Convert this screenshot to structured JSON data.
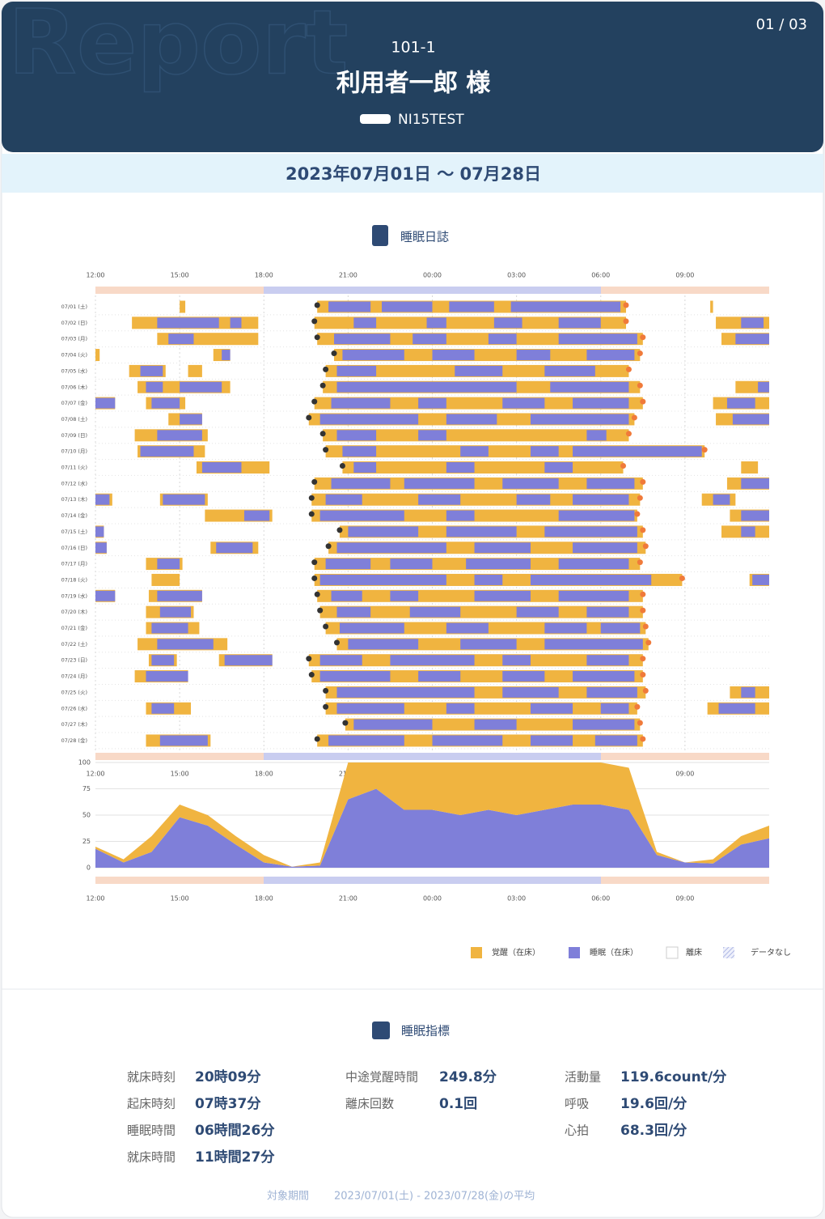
{
  "header": {
    "page": "01 / 03",
    "watermark": "Report",
    "room": "101-1",
    "name": "利用者一郎 様",
    "device": "NI15TEST"
  },
  "date_range": "2023年07月01日 〜 07月28日",
  "sleep_diary": {
    "title": "睡眠日誌",
    "xlim": [
      0,
      24
    ],
    "xticks": [
      {
        "value": 0,
        "label": "12:00"
      },
      {
        "value": 3,
        "label": "15:00"
      },
      {
        "value": 6,
        "label": "18:00"
      },
      {
        "value": 9,
        "label": "21:00"
      },
      {
        "value": 12,
        "label": "00:00"
      },
      {
        "value": 15,
        "label": "03:00"
      },
      {
        "value": 18,
        "label": "06:00"
      },
      {
        "value": 21,
        "label": "09:00"
      }
    ],
    "rows": [
      {
        "date": "07/01 (土)",
        "bed": [
          [
            3.0,
            3.2
          ],
          [
            7.9,
            18.9
          ],
          [
            21.9,
            22.0
          ]
        ],
        "sleep": [
          [
            8.3,
            9.8
          ],
          [
            10.2,
            12.0
          ],
          [
            12.6,
            14.2
          ],
          [
            14.8,
            18.7
          ]
        ]
      },
      {
        "date": "07/02 (日)",
        "bed": [
          [
            1.3,
            5.8
          ],
          [
            7.8,
            18.9
          ],
          [
            22.1,
            24
          ]
        ],
        "sleep": [
          [
            2.2,
            4.4
          ],
          [
            4.8,
            5.2
          ],
          [
            9.2,
            10.0
          ],
          [
            11.8,
            12.5
          ],
          [
            14.2,
            15.2
          ],
          [
            16.5,
            18.0
          ],
          [
            23.0,
            23.8
          ]
        ]
      },
      {
        "date": "07/03 (月)",
        "bed": [
          [
            2.2,
            5.8
          ],
          [
            7.9,
            19.5
          ],
          [
            22.3,
            24
          ]
        ],
        "sleep": [
          [
            2.6,
            3.5
          ],
          [
            8.5,
            10.5
          ],
          [
            11.3,
            12.5
          ],
          [
            14.0,
            15.0
          ],
          [
            16.5,
            19.3
          ],
          [
            22.8,
            24
          ]
        ]
      },
      {
        "date": "07/04 (火)",
        "bed": [
          [
            0,
            0.15
          ],
          [
            4.2,
            4.8
          ],
          [
            8.5,
            19.4
          ]
        ],
        "sleep": [
          [
            4.5,
            4.8
          ],
          [
            8.8,
            11.0
          ],
          [
            12.0,
            13.5
          ],
          [
            15.0,
            16.2
          ],
          [
            17.5,
            19.2
          ]
        ]
      },
      {
        "date": "07/05 (水)",
        "bed": [
          [
            1.2,
            2.5
          ],
          [
            3.3,
            3.8
          ],
          [
            8.2,
            19.0
          ]
        ],
        "sleep": [
          [
            1.6,
            2.4
          ],
          [
            8.6,
            10.0
          ],
          [
            12.8,
            14.5
          ],
          [
            16.0,
            17.8
          ]
        ]
      },
      {
        "date": "07/06 (木)",
        "bed": [
          [
            1.5,
            4.8
          ],
          [
            8.1,
            19.4
          ],
          [
            22.8,
            24
          ]
        ],
        "sleep": [
          [
            1.8,
            2.4
          ],
          [
            3.0,
            4.5
          ],
          [
            8.6,
            15.0
          ],
          [
            16.2,
            19.0
          ],
          [
            23.6,
            24
          ]
        ]
      },
      {
        "date": "07/07 (金)",
        "bed": [
          [
            0,
            0.7
          ],
          [
            1.8,
            3.2
          ],
          [
            7.8,
            19.5
          ],
          [
            22.0,
            24
          ]
        ],
        "sleep": [
          [
            0,
            0.7
          ],
          [
            2.0,
            3.0
          ],
          [
            8.4,
            10.5
          ],
          [
            11.5,
            12.5
          ],
          [
            14.5,
            16.0
          ],
          [
            17.0,
            19.0
          ],
          [
            22.5,
            23.5
          ]
        ]
      },
      {
        "date": "07/08 (土)",
        "bed": [
          [
            2.6,
            3.8
          ],
          [
            7.6,
            19.2
          ],
          [
            22.1,
            24
          ]
        ],
        "sleep": [
          [
            3.0,
            3.8
          ],
          [
            8.0,
            11.5
          ],
          [
            12.5,
            14.3
          ],
          [
            15.5,
            19.0
          ],
          [
            22.7,
            24
          ]
        ]
      },
      {
        "date": "07/09 (日)",
        "bed": [
          [
            1.4,
            4.0
          ],
          [
            8.1,
            19.0
          ]
        ],
        "sleep": [
          [
            2.2,
            3.8
          ],
          [
            8.6,
            10.0
          ],
          [
            11.5,
            12.5
          ],
          [
            17.5,
            18.2
          ]
        ]
      },
      {
        "date": "07/10 (月)",
        "bed": [
          [
            1.5,
            3.9
          ],
          [
            8.2,
            21.7
          ]
        ],
        "sleep": [
          [
            1.6,
            3.5
          ],
          [
            8.8,
            10.0
          ],
          [
            13.0,
            14.0
          ],
          [
            15.5,
            16.5
          ],
          [
            17.0,
            21.6
          ]
        ]
      },
      {
        "date": "07/11 (火)",
        "bed": [
          [
            3.6,
            6.2
          ],
          [
            8.8,
            18.8
          ],
          [
            23.0,
            23.6
          ]
        ],
        "sleep": [
          [
            3.8,
            5.2
          ],
          [
            9.2,
            10.0
          ],
          [
            12.5,
            13.5
          ],
          [
            16.0,
            17.0
          ]
        ]
      },
      {
        "date": "07/12 (水)",
        "bed": [
          [
            7.8,
            19.5
          ],
          [
            22.5,
            24
          ]
        ],
        "sleep": [
          [
            8.4,
            10.5
          ],
          [
            11.0,
            13.5
          ],
          [
            14.5,
            16.5
          ],
          [
            17.5,
            19.2
          ],
          [
            23.0,
            24
          ]
        ]
      },
      {
        "date": "07/13 (木)",
        "bed": [
          [
            0,
            0.6
          ],
          [
            2.3,
            4.0
          ],
          [
            7.7,
            19.4
          ],
          [
            21.6,
            22.8
          ]
        ],
        "sleep": [
          [
            0,
            0.5
          ],
          [
            2.4,
            3.9
          ],
          [
            8.2,
            9.5
          ],
          [
            11.5,
            13.0
          ],
          [
            15.0,
            16.2
          ],
          [
            17.0,
            19.0
          ],
          [
            22.0,
            22.6
          ]
        ]
      },
      {
        "date": "07/14 (金)",
        "bed": [
          [
            3.9,
            6.3
          ],
          [
            7.7,
            19.3
          ],
          [
            22.6,
            24
          ]
        ],
        "sleep": [
          [
            5.3,
            6.2
          ],
          [
            8.0,
            11.0
          ],
          [
            12.5,
            13.5
          ],
          [
            16.5,
            19.2
          ],
          [
            23.0,
            24
          ]
        ]
      },
      {
        "date": "07/15 (土)",
        "bed": [
          [
            0,
            0.3
          ],
          [
            8.7,
            19.5
          ],
          [
            22.3,
            24
          ]
        ],
        "sleep": [
          [
            0,
            0.3
          ],
          [
            9.0,
            11.5
          ],
          [
            12.5,
            15.0
          ],
          [
            16.0,
            19.3
          ],
          [
            23.0,
            23.5
          ]
        ]
      },
      {
        "date": "07/16 (日)",
        "bed": [
          [
            0,
            0.4
          ],
          [
            4.1,
            5.8
          ],
          [
            8.3,
            19.6
          ]
        ],
        "sleep": [
          [
            0,
            0.4
          ],
          [
            4.3,
            5.6
          ],
          [
            8.6,
            12.5
          ],
          [
            13.5,
            15.5
          ],
          [
            17.0,
            19.3
          ]
        ]
      },
      {
        "date": "07/17 (月)",
        "bed": [
          [
            1.8,
            3.1
          ],
          [
            7.8,
            19.4
          ]
        ],
        "sleep": [
          [
            2.2,
            3.0
          ],
          [
            8.2,
            9.8
          ],
          [
            10.5,
            12.0
          ],
          [
            13.2,
            15.5
          ],
          [
            16.5,
            19.0
          ]
        ]
      },
      {
        "date": "07/18 (火)",
        "bed": [
          [
            2.0,
            3.0
          ],
          [
            7.8,
            20.9
          ],
          [
            23.3,
            24
          ]
        ],
        "sleep": [
          [
            8.0,
            12.5
          ],
          [
            13.5,
            14.5
          ],
          [
            15.5,
            19.8
          ],
          [
            23.4,
            24
          ]
        ]
      },
      {
        "date": "07/19 (水)",
        "bed": [
          [
            0,
            0.7
          ],
          [
            1.9,
            3.8
          ],
          [
            7.9,
            19.5
          ]
        ],
        "sleep": [
          [
            0,
            0.7
          ],
          [
            2.2,
            3.8
          ],
          [
            8.4,
            9.5
          ],
          [
            10.5,
            11.5
          ],
          [
            13.5,
            15.5
          ],
          [
            16.5,
            19.0
          ]
        ]
      },
      {
        "date": "07/20 (木)",
        "bed": [
          [
            1.8,
            3.5
          ],
          [
            8.0,
            19.5
          ]
        ],
        "sleep": [
          [
            2.3,
            3.4
          ],
          [
            8.6,
            9.8
          ],
          [
            11.2,
            13.0
          ],
          [
            15.0,
            16.5
          ],
          [
            17.5,
            19.0
          ]
        ]
      },
      {
        "date": "07/21 (金)",
        "bed": [
          [
            1.8,
            3.7
          ],
          [
            8.2,
            19.6
          ]
        ],
        "sleep": [
          [
            2.0,
            3.3
          ],
          [
            8.7,
            11.0
          ],
          [
            12.5,
            14.0
          ],
          [
            16.0,
            17.5
          ],
          [
            18.0,
            19.4
          ]
        ]
      },
      {
        "date": "07/22 (土)",
        "bed": [
          [
            1.5,
            4.7
          ],
          [
            8.6,
            19.7
          ]
        ],
        "sleep": [
          [
            2.2,
            4.2
          ],
          [
            9.0,
            11.5
          ],
          [
            13.0,
            15.0
          ],
          [
            16.0,
            19.5
          ]
        ]
      },
      {
        "date": "07/23 (日)",
        "bed": [
          [
            1.9,
            2.9
          ],
          [
            4.4,
            6.3
          ],
          [
            7.6,
            19.5
          ]
        ],
        "sleep": [
          [
            2.0,
            2.8
          ],
          [
            4.6,
            6.3
          ],
          [
            8.0,
            9.5
          ],
          [
            10.5,
            13.5
          ],
          [
            14.5,
            15.5
          ],
          [
            17.5,
            19.0
          ]
        ]
      },
      {
        "date": "07/24 (月)",
        "bed": [
          [
            1.4,
            3.3
          ],
          [
            7.7,
            19.5
          ]
        ],
        "sleep": [
          [
            1.8,
            3.3
          ],
          [
            8.0,
            10.5
          ],
          [
            11.5,
            13.0
          ],
          [
            14.5,
            16.0
          ],
          [
            17.0,
            19.2
          ]
        ]
      },
      {
        "date": "07/25 (火)",
        "bed": [
          [
            8.2,
            19.6
          ],
          [
            22.6,
            24
          ]
        ],
        "sleep": [
          [
            8.6,
            13.5
          ],
          [
            14.5,
            16.5
          ],
          [
            17.5,
            19.3
          ],
          [
            23.0,
            23.5
          ]
        ]
      },
      {
        "date": "07/26 (水)",
        "bed": [
          [
            1.8,
            3.4
          ],
          [
            8.2,
            19.3
          ],
          [
            21.8,
            24
          ]
        ],
        "sleep": [
          [
            2.0,
            2.8
          ],
          [
            8.6,
            11.0
          ],
          [
            12.5,
            13.5
          ],
          [
            15.5,
            17.0
          ],
          [
            18.0,
            19.0
          ],
          [
            22.2,
            23.5
          ]
        ]
      },
      {
        "date": "07/27 (木)",
        "bed": [
          [
            8.9,
            19.4
          ]
        ],
        "sleep": [
          [
            9.2,
            12.0
          ],
          [
            13.5,
            15.0
          ],
          [
            17.0,
            19.2
          ]
        ]
      },
      {
        "date": "07/28 (金)",
        "bed": [
          [
            1.8,
            4.1
          ],
          [
            7.9,
            19.5
          ]
        ],
        "sleep": [
          [
            2.3,
            4.0
          ],
          [
            8.3,
            11.0
          ],
          [
            12.0,
            14.5
          ],
          [
            15.5,
            17.0
          ],
          [
            17.8,
            19.3
          ]
        ]
      }
    ]
  },
  "activity_chart": {
    "type": "area",
    "x": [
      0,
      1,
      2,
      3,
      4,
      5,
      6,
      7,
      8,
      9,
      10,
      11,
      12,
      13,
      14,
      15,
      16,
      17,
      18,
      19,
      20,
      21,
      22,
      23,
      24
    ],
    "series": [
      {
        "name": "睡眠（在床）",
        "color": "#7f7fd9",
        "values": [
          18,
          5,
          15,
          48,
          40,
          22,
          5,
          1,
          2,
          65,
          75,
          55,
          55,
          50,
          55,
          50,
          55,
          60,
          60,
          55,
          12,
          5,
          4,
          22,
          28
        ]
      },
      {
        "name": "覚醒（在床）",
        "color": "#f0b440",
        "values": [
          2,
          3,
          15,
          12,
          10,
          8,
          7,
          0,
          3,
          35,
          25,
          45,
          45,
          50,
          45,
          50,
          45,
          40,
          40,
          40,
          3,
          0,
          4,
          8,
          12
        ]
      }
    ],
    "ylim": [
      0,
      100
    ],
    "yticks": [
      0,
      25,
      50,
      75,
      100
    ]
  },
  "legend": [
    "覚醒（在床）",
    "睡眠（在床）",
    "離床",
    "データなし"
  ],
  "metrics": {
    "title": "睡眠指標",
    "columns": [
      [
        {
          "label": "就床時刻",
          "value": "20時09分"
        },
        {
          "label": "起床時刻",
          "value": "07時37分"
        },
        {
          "label": "睡眠時間",
          "value": "06時間26分"
        },
        {
          "label": "就床時間",
          "value": "11時間27分"
        }
      ],
      [
        {
          "label": "中途覚醒時間",
          "value": "249.8分"
        },
        {
          "label": "離床回数",
          "value": "0.1回"
        }
      ],
      [
        {
          "label": "活動量",
          "value": "119.6count/分"
        },
        {
          "label": "呼吸",
          "value": "19.6回/分"
        },
        {
          "label": "心拍",
          "value": "68.3回/分"
        }
      ]
    ]
  },
  "footer": {
    "label": "対象期間",
    "text": "2023/07/01(土) - 2023/07/28(金)の平均"
  }
}
